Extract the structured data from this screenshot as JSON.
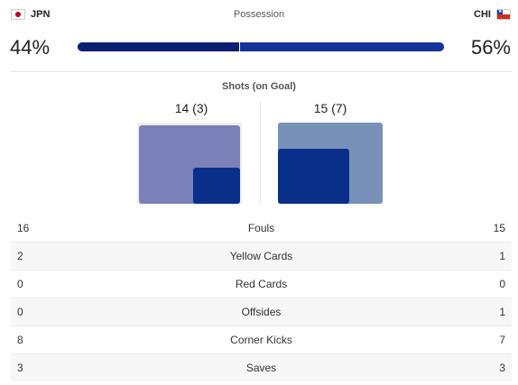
{
  "teams": {
    "home": {
      "code": "JPN",
      "flag_icon": "japan-flag-icon"
    },
    "away": {
      "code": "CHI",
      "flag_icon": "chile-flag-icon"
    }
  },
  "possession": {
    "label": "Possession",
    "home_pct": "44%",
    "away_pct": "56%",
    "home_value": 44,
    "away_value": 56
  },
  "shots": {
    "label": "Shots (on Goal)",
    "home_text": "14 (3)",
    "away_text": "15 (7)",
    "home_total": 14,
    "home_on_goal": 3,
    "away_total": 15,
    "away_on_goal": 7
  },
  "colors": {
    "dark_navy": "#0c1f74",
    "home_total_box": "#7b80b8",
    "away_total_box": "#7891b9",
    "on_goal_box": "#0a2f8a"
  },
  "stats": [
    {
      "home": "16",
      "label": "Fouls",
      "away": "15"
    },
    {
      "home": "2",
      "label": "Yellow Cards",
      "away": "1"
    },
    {
      "home": "0",
      "label": "Red Cards",
      "away": "0"
    },
    {
      "home": "0",
      "label": "Offsides",
      "away": "1"
    },
    {
      "home": "8",
      "label": "Corner Kicks",
      "away": "7"
    },
    {
      "home": "3",
      "label": "Saves",
      "away": "3"
    }
  ]
}
